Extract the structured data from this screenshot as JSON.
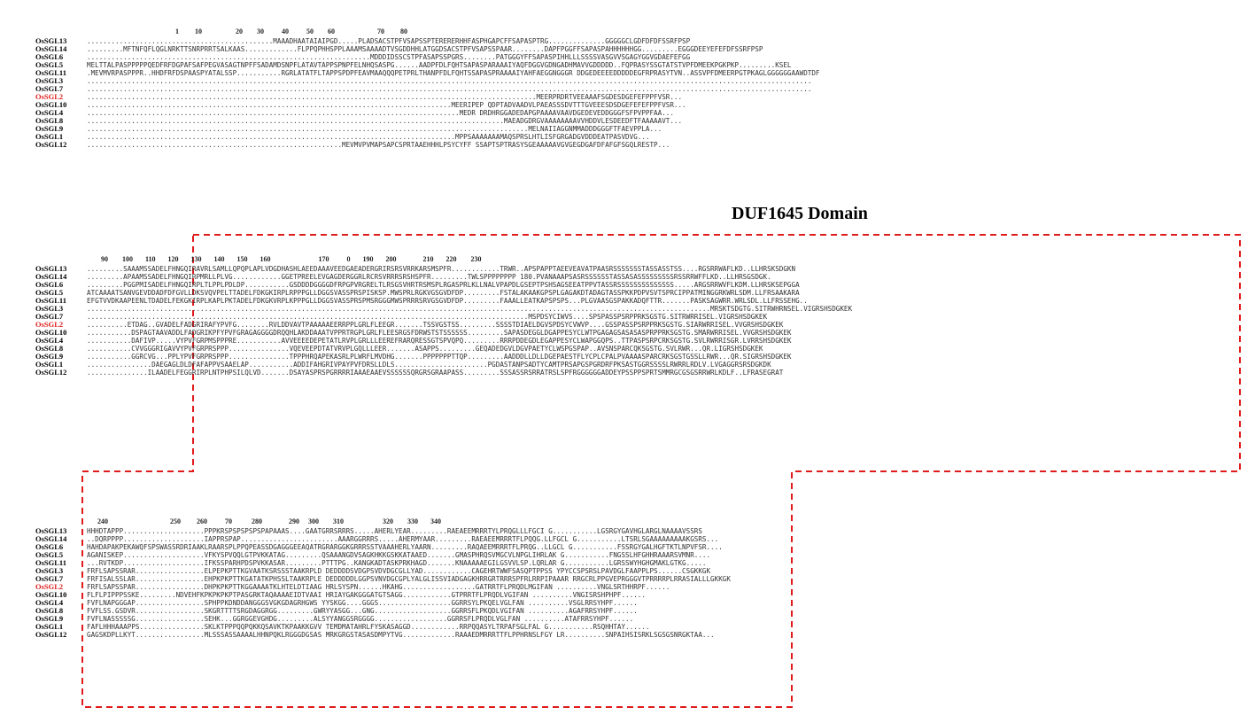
{
  "domain_title": "DUF1645 Domain",
  "highlight_label": "OsSGL2",
  "blocks": [
    {
      "ruler": "                                                  1         10                   20        30          40          50        60                        70         80",
      "rows": [
        {
          "name": "OsSGL13",
          "seq": "..............................................MAAADHAATAIAIPGD.....PLADSACSTPFVSAPSSPTERERERHHFASPHGAPCFFSAPASPTRG..............GGGGGCLGDFDFDFSSRFPSP"
        },
        {
          "name": "OsSGL14",
          "seq": ".........MFTNFQFLQGLNRKTTSNRPRRTSALKAAS.............FLPPQPHHSPPLAAAMSAAAADTVSGDDHHLATGGDSACSTPFVSAPSSPAAR........DAPFPGGFFSAPASPAHHHHHHGG.........EGGGDEEYEFEFDFSSRFPSP"
        },
        {
          "name": "OsSGL6",
          "seq": "......................................................................MDDDIDSSCSTPFASAPSSPGRS........PATGGGYFFSAPASPIHHLLLSSSSVASGVVSGAGYGGVGDAEFEFGG"
        },
        {
          "name": "OsSGL5",
          "seq": "MELTTALPASPPPPPQEDFRFDGPAFSAFPEGVASAGTNPFFSADAMDSNPFLATAVTAPPSPNPFELNHQSASPG......AADPFDLFQHTSAPASPARAAAIYAQFDGGVGDNGADHMAVVGDDDDD..FQPRASYSSGTATSTVPFDMEEKPGKPKP.........KSEL"
        },
        {
          "name": "OsSGL11",
          "seq": ".MEVMVRPASPPPR..HHDFRFDSPAASPYATALSSP...........RGRLATATFLTAPPSPDPFEAVMAAQQQPETPRLTHANPFDLFQHTSSAPASPRAAAAIYAHFAEGGNGGGR DDGEDEEEEDDDDDEGFRPRASYTVN..ASSVPFDMEERPGTPKAGLGGGGGGAAWDTDF"
        },
        {
          "name": "OsSGL3",
          "seq": "..................................................................................................................................................................................."
        },
        {
          "name": "OsSGL7",
          "seq": "..................................................................................................................................................................................."
        },
        {
          "name": "OsSGL2",
          "seq": "...............................................................................................................MEERPRDRTVEEAAAFSGDESDGEFEFPPFVSR..."
        },
        {
          "name": "OsSGL10",
          "seq": "..........................................................................................MEERIPEP QDPTADVAADVLPAEASSSDVTTTGVEEESDSDGEFEFEFPPFVSR..."
        },
        {
          "name": "OsSGL4",
          "seq": "............................................................................................MEDR DRDHRGGADEDAPGPAAAAVAAVDGEDEVEDDGGGFSFPVPPFAA..."
        },
        {
          "name": "OsSGL8",
          "seq": ".......................................................................................................MAEADGDRGVAAAAAAAAVVHDDVLESDEEDFTFAAAAAVT..."
        },
        {
          "name": "OsSGL9",
          "seq": ".............................................................................................................MELNAIIAGGNMMADDDGGGFTFAEVPPLA..."
        },
        {
          "name": "OsSGL1",
          "seq": "...........................................................................................MPPSAAAAAAAMAQSPRSLHTLISFGRGADGVDDDEATPASVDVG..."
        },
        {
          "name": "OsSGL12",
          "seq": "...............................................................MEVMVPVMAPSAPCSPRTAAEHHHLPSYCYFF SSAPTSPTRASYSGEAAAAAVGVGEGDGAFDFAFGFSGQLRESTP..."
        }
      ]
    },
    {
      "ruler": "        90        100       110       120       130       140       150       160                           170          0       190       200               210       220        230",
      "rows": [
        {
          "name": "OsSGL13",
          "seq": ".........SAAAMSSADELFHNGQIRAVRLSAMLLQPQPLAPLVDGDHASHLAEEDAAAVEEDGAEADERGRIRSRSVRRKARSMSPFR............TRWR..APSPAPPTAEEVEAVATPAASRSSSSSSSTASSASSTSS....RGSRRWAFLKD..LLHRSKSDGKN"
        },
        {
          "name": "OsSGL14",
          "seq": ".........APAAMSSADELFHNGQIRPMRLLPLVG............GGETPREELEVGAGDERGGRLRCRSVRRRSRSHSPFR.........TWLSPPPPPPPP 180.PVANAAAPSASRSSSSSSTASSASASSSSSSSSSRSSRRWFFLKD..LLHRSGSDGK."
        },
        {
          "name": "OsSGL6",
          "seq": ".........PGGPMISADELFHNGQIRPLTLPPLPDLDP...........GSDDDDGGGGDFRPGPVRGRELTLRSGSVHRTRSMSPLRGASPRLKLLNALVPAPDLGSEPTPSHSAGSEEATPPVTASSRSSSSSSSSSSSSSS.....ARGSRRWVFLKDM.LLHRSKSEPGGA"
        },
        {
          "name": "OsSGL5",
          "seq": "ATCAAAATSANVGEVDDADFDFGVLLDKSVQVPELTTADELFDKGKIRPLRPPPGLLDGGSVASSPRSPISKSP.MWSPRLRGKVGSGVDFDP.........FSTALAKAAKGPSPLGAGAKDTADAGTASSPKKPDPVSVTSPRCIPPATMINGGRKWRLSDM.LLFRSAAKARA"
        },
        {
          "name": "OsSGL11",
          "seq": "EFGTVVDKAAPEENLTDADELFEKGKIRPLKAPLPKTADELFDKGKVRPLKPPPGLLDGGSVASSPRSPMSRGGGMWSPRRRSRVGSGVDFDP.........FAAALLEATKAPSPSPS...PLGVAASGSPAKKADQFTTR.......PASKSAGWRR.WRLSDL.LLFRSSEHG.."
        },
        {
          "name": "OsSGL3",
          "seq": "..........................................................................................................................................................MRSKTSDGTG.SITRWHRNSEL.VIGRSHSDGKEK"
        },
        {
          "name": "OsSGL7",
          "seq": ".............................................................................................................MSPDSYCIWVS....SPSPASSPSRPPRKSGSTG.SITRWRRISEL.VIGRSHSDGKEK"
        },
        {
          "name": "OsSGL2",
          "seq": "..........ETDAG..GVADELFADGRIRAFYPVFG........RVLDDVAVTPAAAAAEERRPPLGRLFLEEGR.......TSSVGSTSS.........SSSSTDIAELDGVSPDSYCVWVP....GSSPASSPSRPPRKSGSTG.SIARWRRISEL.VVGRSHSDGKEK"
        },
        {
          "name": "OsSGL10",
          "seq": "...........DSPAGTAAVADDLFADGRIKPFYPVFGRAGAGGGGDRQQHLAKDDAAATVPPRTRGPLGRLFLEESRGSFDRWSTSTSSSSSS.........SAPASDEGGLDGAPPESYCLWTPGAGAGSASASASPRPPRKSGSTG.SMARWRRISEL.VVGRSHSDGKEK"
        },
        {
          "name": "OsSGL4",
          "seq": "...........DAFIVP.....VYPVFGRPMSPPPRE...........AVVEEEEDEPETATLRVPLGRLLLEEREFRARQRESSGTSPVQPQ.........RRRPDDEGDLEGAPPESYCLWAPGGQPS..TTPASPSRPCRKSGSTG.SVLRWRRISGR.LVRRSHSDGKEK"
        },
        {
          "name": "OsSGL8",
          "seq": "...........CVVGGGRIGAVVYPVFGRPRSPPP...............VQEVEEPDTATVRVPLGQLLLEER.......ASAPPS.........GEQADEDGVLDGVPAETYCLWSPGSPAP..AVSNSPARCQKSGSTG.SVLRWR...QR.LIGRSHSDGKEK"
        },
        {
          "name": "OsSGL9",
          "seq": "...........GGRCVG...PPLYPVFGRPRSPPP...............TPPPHRQAPEKASRLPLWRFLMVDHG.......PPPPPPPTTQP.........AADDDLLDLLDGEPAESTFLYCPLCPALPVAAAASPARCRKSGSTGSSLLRWR...QR.SIGRSHSDGKEK"
        },
        {
          "name": "OsSGL1",
          "seq": "................DAEGAGLDLDFAFAPPVSAAELAP...........ADDIFAHGRIVPAYPVFDRSLLDLS.......................PGDASTANPSADTYCAMTPRSAPGSPGRDRFPKSASTGGRSSSSLRWRRLRDLV.LVGAGGRSRSDGKDK"
        },
        {
          "name": "OsSGL12",
          "seq": "...............ILAADELFEGGRIRPLNTPHPSILQLVD.......DSAYASPRSPGRRRRIAAAEAAEVSSSSSSQRGRSGRAAPASS.........SSSASSRSRRATRSLSPFRGGGGGGADDEYPSSPPSPRTSMMRGCGSGSRRWRLKDLF..LFRASEGRAT"
        }
      ]
    },
    {
      "ruler": "      240                                   250         260          70           280               290     300        310                      320        330       340",
      "rows": [
        {
          "name": "OsSGL13",
          "seq": "HHHDTAPPP....................PPPKRSPSPSPSPSPAPAAAS....GAATGRRSRRRS.....AHERLYEAR.........RAEAEEMRRRTYLPRQGLLLFGCI G...........LGSRGYGAVHGLARGLNAAAAVSSRS"
        },
        {
          "name": "OsSGL14",
          "seq": "..DQRPPPP....................IAPPRSPAP........................AAARGGRRRS.....AHERMYAAR.........RAEAEEMRRRTFLPQQG.LLFGCL G...........LTSRLSGAAAAAAAAAKGSRS..."
        },
        {
          "name": "OsSGL6",
          "seq": "HAHDAPAKPEKAWQFSPSWASSRDRIAAKLRAARSPLPPQPEASSDGAGGGEEAQATRGRARGGKGRRRSSTVAAAHERLYAARN.........RAQAEEMRRRTFLPRQG..LLGCL G...........FSSRGYGALHGFTKTLNPVFSR...."
        },
        {
          "name": "OsSGL5",
          "seq": "AGANISKEP....................VFKYSPVQQLGTPVKKATAG.........QSAAANGDVSAGKHKKGSKKATAAED.......GMASPHRQSVMGCVLNPGLIHRLAK G...........FNGSSLHFGHHRAAARSVMNR...."
        },
        {
          "name": "OsSGL11",
          "seq": "...RVTKDP....................IFKSSPARHPDSPVKKASAR.........PTTTPG..KANGKADTASKPRKHAGD.......KNAAAAAEGILGSVVLSP.LQRLAR G...........LGRSSWYHGHGMAKLGTKG....."
        },
        {
          "name": "OsSGL3",
          "seq": "FRFLSAPSSRAR.................ELPEPKPTTKGVAATKSRSSSTAAKRPLD DEDDDDSVDGPSVDVDGCGLLYAD............CAGEHRTWWFSASQPTPPSS YPYCCSPSRSLPAVDGLFAAPPLPS......CSGKKGK"
        },
        {
          "name": "OsSGL7",
          "seq": "FRFISALSSLAR.................EHPKPKPTTKGATATKPHSSLTAAKRPLE DEDDDDDLGGPSVNVDGCGPLYALGLISSVIADGAGKHRRGRTRRRSPFRLRRPIPAAAR RRGCRLPPGVEPRGGGVTPRRRRPLRRASIALLLGKKGK"
        },
        {
          "name": "OsSGL2",
          "seq": "FRFLSAPSSPAR.................DHPKPKPTTKGGAAAATKLHTELDTIAAG HRLSYSPN......HKAHG..................GATRRTFLPRQDLMGIFAN ..........VNGLSRTHHRPF......"
        },
        {
          "name": "OsSGL10",
          "seq": "FLFLPIPPPSSKE.........NDVEHFKPKPKPKPTPASGRKTAQAAAAEIDTVAAI HRIAYGAKGGGATGTSAGG............GTPRRTFLPRQDLVGIFAN ..........VNGISRSHPHPF......"
        },
        {
          "name": "OsSGL4",
          "seq": "FVFLNAPGGGAP.................SPHPPKDNDDANGGGSVGKGDAGRHGWS YYSKGG....GGGS..................GGRRSYLPKQELVGLFAN ..........VSGLRRSYHPF......"
        },
        {
          "name": "OsSGL8",
          "seq": "FVFLSS.GSDVR.................SKGRTTTTSRGDAGGRGG.........GWRYYASGG...GNG...................GGRRSFLPKQDLVGIFAN ..........AGAFRRSYHPF......"
        },
        {
          "name": "OsSGL9",
          "seq": "FVFLNASSSSSG.................SEHK...GGRGGEVGHDG.........ALSYYANGGSRGGGG..................GGRRSFLPRQDLVGLFAN ..........ATAFRRSYHPF......"
        },
        {
          "name": "OsSGL1",
          "seq": "FAFLHHHAAAPPS................SKLKTPPPQQPQKKQSAVKTKPAAKKGVV TEMDMATAHRLFYSKASAGGD............RRPQQASYLTRPAFSGLFAL G...........RSQHHTAY......"
        },
        {
          "name": "OsSGL12",
          "seq": "GAGSKDPLLKYT.................MLSSSASSAAAALHHNPQKLRGGGDGSAS MRKGRGSTASASDMPYTVG.............RAAAEDMRRRTTFLPPHRNSLFGY LR..........SNPAIHSISRKLSGSGSNRGKTAA..."
        }
      ]
    }
  ]
}
